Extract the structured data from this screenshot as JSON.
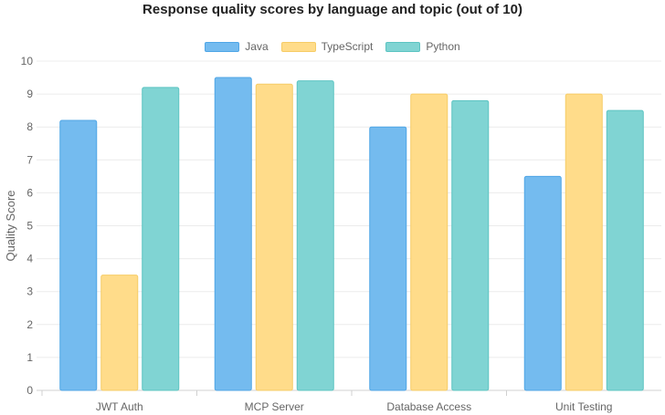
{
  "chart_data": {
    "type": "bar",
    "title": "Response quality scores by language and topic (out of 10)",
    "xlabel": "",
    "ylabel": "Quality Score",
    "ylim": [
      0,
      10
    ],
    "yticks": [
      0,
      1,
      2,
      3,
      4,
      5,
      6,
      7,
      8,
      9,
      10
    ],
    "categories": [
      "JWT Auth",
      "MCP Server",
      "Database Access",
      "Unit Testing"
    ],
    "series": [
      {
        "name": "Java",
        "values": [
          8.2,
          9.5,
          8.0,
          6.5
        ],
        "fill": "#74bbef",
        "stroke": "#4fa6e6"
      },
      {
        "name": "TypeScript",
        "values": [
          3.5,
          9.3,
          9.0,
          9.0
        ],
        "fill": "#ffdc8a",
        "stroke": "#f6cc66"
      },
      {
        "name": "Python",
        "values": [
          9.2,
          9.4,
          8.8,
          8.5
        ],
        "fill": "#80d4d3",
        "stroke": "#5cc4c2"
      }
    ],
    "grid": true,
    "legend": "top-center"
  }
}
